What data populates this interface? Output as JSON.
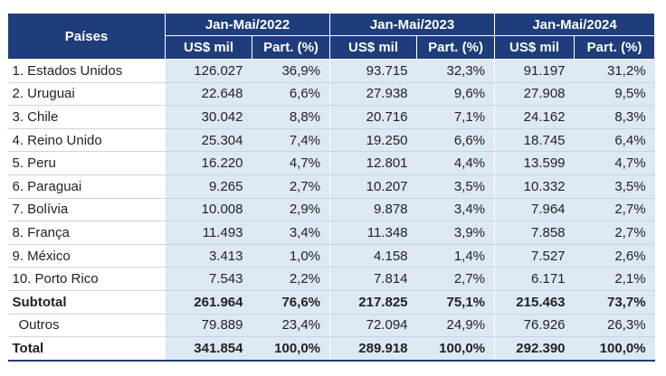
{
  "table": {
    "header_countries": "Países",
    "periods": [
      "Jan-Mai/2022",
      "Jan-Mai/2023",
      "Jan-Mai/2024"
    ],
    "sub_value": "US$ mil",
    "sub_share": "Part. (%)",
    "rows": [
      {
        "name": "1. Estados Unidos",
        "v": [
          "126.027",
          "36,9%",
          "93.715",
          "32,3%",
          "91.197",
          "31,2%"
        ]
      },
      {
        "name": "2. Uruguai",
        "v": [
          "22.648",
          "6,6%",
          "27.938",
          "9,6%",
          "27.908",
          "9,5%"
        ]
      },
      {
        "name": "3. Chile",
        "v": [
          "30.042",
          "8,8%",
          "20.716",
          "7,1%",
          "24.162",
          "8,3%"
        ]
      },
      {
        "name": "4. Reino Unido",
        "v": [
          "25.304",
          "7,4%",
          "19.250",
          "6,6%",
          "18.745",
          "6,4%"
        ]
      },
      {
        "name": "5. Peru",
        "v": [
          "16.220",
          "4,7%",
          "12.801",
          "4,4%",
          "13.599",
          "4,7%"
        ]
      },
      {
        "name": "6. Paraguai",
        "v": [
          "9.265",
          "2,7%",
          "10.207",
          "3,5%",
          "10.332",
          "3,5%"
        ]
      },
      {
        "name": "7. Bolívia",
        "v": [
          "10.008",
          "2,9%",
          "9.878",
          "3,4%",
          "7.964",
          "2,7%"
        ]
      },
      {
        "name": "8. França",
        "v": [
          "11.493",
          "3,4%",
          "11.348",
          "3,9%",
          "7.858",
          "2,7%"
        ]
      },
      {
        "name": "9. México",
        "v": [
          "3.413",
          "1,0%",
          "4.158",
          "1,4%",
          "7.527",
          "2,6%"
        ]
      },
      {
        "name": "10. Porto Rico",
        "v": [
          "7.543",
          "2,2%",
          "7.814",
          "2,7%",
          "6.171",
          "2,1%"
        ]
      }
    ],
    "subtotal": {
      "name": "Subtotal",
      "v": [
        "261.964",
        "76,6%",
        "217.825",
        "75,1%",
        "215.463",
        "73,7%"
      ]
    },
    "outros": {
      "name": "Outros",
      "v": [
        "79.889",
        "23,4%",
        "72.094",
        "24,9%",
        "76.926",
        "26,3%"
      ]
    },
    "total": {
      "name": "Total",
      "v": [
        "341.854",
        "100,0%",
        "289.918",
        "100,0%",
        "292.390",
        "100,0%"
      ]
    }
  },
  "colors": {
    "header_bg": "#1f3d7a",
    "cell_bg": "#dde8f5"
  }
}
